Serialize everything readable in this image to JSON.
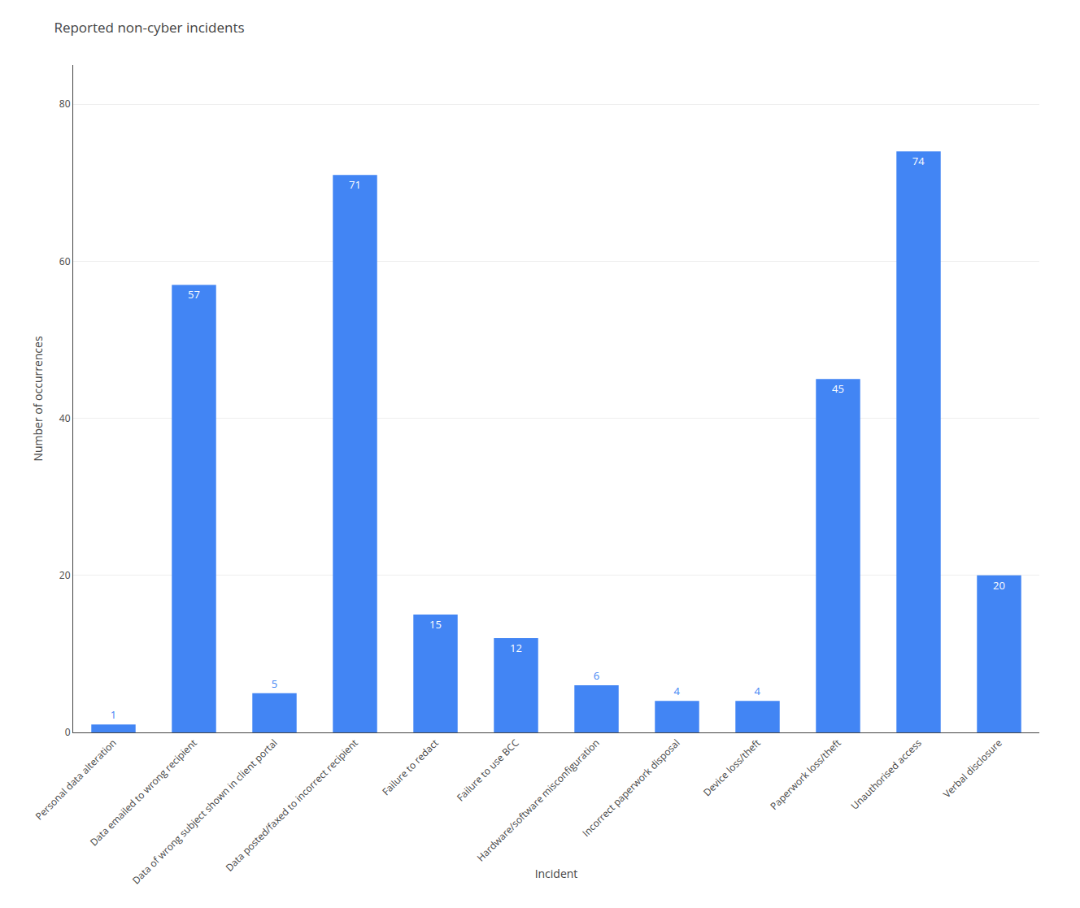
{
  "chart_data": {
    "type": "bar",
    "title": "Reported non-cyber incidents",
    "categories": [
      "Personal data alteration",
      "Data emailed to wrong recipient",
      "Data of wrong subject shown in client portal",
      "Data posted/faxed to incorrect recipient",
      "Failure to redact",
      "Failure to use BCC",
      "Hardware/software misconfiguration",
      "Incorrect paperwork disposal",
      "Device loss/theft",
      "Paperwork loss/theft",
      "Unauthorised access",
      "Verbal disclosure"
    ],
    "values": [
      1,
      57,
      5,
      71,
      15,
      12,
      6,
      4,
      4,
      45,
      74,
      20
    ],
    "color": "#4285f4",
    "xlabel": "Incident",
    "ylabel": "Number of occurrences",
    "ylim": [
      0,
      85
    ],
    "yticks": [
      0,
      20,
      40,
      60,
      80
    ],
    "grid": true,
    "data_labels": true
  }
}
